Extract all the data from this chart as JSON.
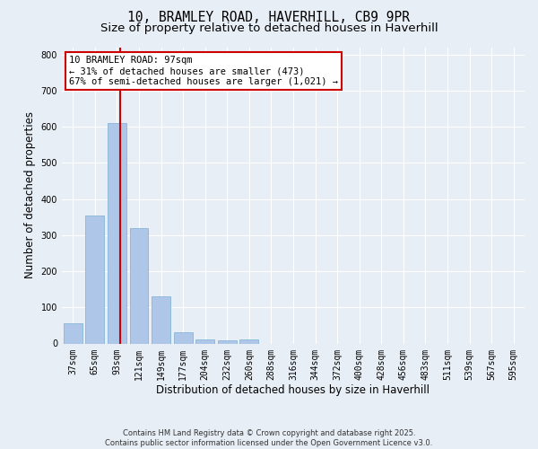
{
  "title_line1": "10, BRAMLEY ROAD, HAVERHILL, CB9 9PR",
  "title_line2": "Size of property relative to detached houses in Haverhill",
  "xlabel": "Distribution of detached houses by size in Haverhill",
  "ylabel": "Number of detached properties",
  "categories": [
    "37sqm",
    "65sqm",
    "93sqm",
    "121sqm",
    "149sqm",
    "177sqm",
    "204sqm",
    "232sqm",
    "260sqm",
    "288sqm",
    "316sqm",
    "344sqm",
    "372sqm",
    "400sqm",
    "428sqm",
    "456sqm",
    "483sqm",
    "511sqm",
    "539sqm",
    "567sqm",
    "595sqm"
  ],
  "values": [
    55,
    355,
    610,
    320,
    130,
    30,
    10,
    8,
    10,
    0,
    0,
    0,
    0,
    0,
    0,
    0,
    0,
    0,
    0,
    0,
    0
  ],
  "bar_color": "#aec6e8",
  "bar_edge_color": "#7aafd4",
  "annotation_line1": "10 BRAMLEY ROAD: 97sqm",
  "annotation_line2": "← 31% of detached houses are smaller (473)",
  "annotation_line3": "67% of semi-detached houses are larger (1,021) →",
  "annotation_box_facecolor": "#ffffff",
  "annotation_box_edgecolor": "#cc0000",
  "red_line_color": "#cc0000",
  "ylim": [
    0,
    820
  ],
  "yticks": [
    0,
    100,
    200,
    300,
    400,
    500,
    600,
    700,
    800
  ],
  "background_color": "#e8eef5",
  "grid_color": "#ffffff",
  "footer_line1": "Contains HM Land Registry data © Crown copyright and database right 2025.",
  "footer_line2": "Contains public sector information licensed under the Open Government Licence v3.0.",
  "title_fontsize": 10.5,
  "subtitle_fontsize": 9.5,
  "tick_fontsize": 7,
  "label_fontsize": 8.5,
  "annotation_fontsize": 7.5,
  "footer_fontsize": 6.0
}
